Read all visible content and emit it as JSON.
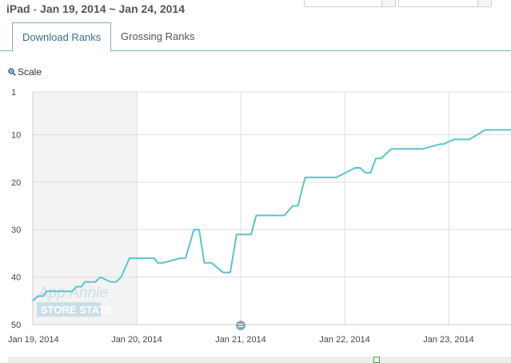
{
  "header": {
    "device": "iPad",
    "separator": " - ",
    "date_range": "Jan 19, 2014 ~ Jan 24, 2014"
  },
  "tabs": [
    {
      "label": "Download Ranks",
      "active": true
    },
    {
      "label": "Grossing Ranks",
      "active": false
    }
  ],
  "scale": {
    "label": "Scale",
    "icon": "zoom-icon"
  },
  "watermark": {
    "line1": "App Annie",
    "line2": "STORE STATS"
  },
  "colors": {
    "line": "#5bc4cc",
    "shaded_region": "#f3f3f3",
    "grid": "#dddddd",
    "tab_border": "#7fb0c4"
  },
  "chart_data": {
    "type": "line",
    "title": "",
    "xlabel": "",
    "ylabel": "",
    "y_inverted": true,
    "ylim": [
      1,
      50
    ],
    "yticks": [
      1,
      10,
      20,
      30,
      40,
      50
    ],
    "x_ticks": [
      "Jan 19, 2014",
      "Jan 20, 2014",
      "Jan 21, 2014",
      "Jan 22, 2014",
      "Jan 23, 2014"
    ],
    "x_range_days": [
      0,
      4.6
    ],
    "shaded_range_days": [
      0,
      1
    ],
    "series": [
      {
        "name": "",
        "x": [
          0,
          0.05,
          0.08,
          0.1,
          0.13,
          0.25,
          0.3,
          0.38,
          0.42,
          0.47,
          0.5,
          0.6,
          0.65,
          0.75,
          0.8,
          0.85,
          0.93,
          1.0,
          1.08,
          1.17,
          1.2,
          1.25,
          1.42,
          1.47,
          1.55,
          1.6,
          1.65,
          1.72,
          1.83,
          1.9,
          1.96,
          2.1,
          2.15,
          2.25,
          2.35,
          2.42,
          2.5,
          2.55,
          2.62,
          2.7,
          2.8,
          2.92,
          3.1,
          3.15,
          3.2,
          3.25,
          3.3,
          3.35,
          3.45,
          3.6,
          3.75,
          3.92,
          3.95,
          4.05,
          4.1,
          4.2,
          4.35,
          4.45,
          4.6
        ],
        "y": [
          45,
          44,
          44,
          44,
          43,
          43,
          43,
          43,
          42,
          42,
          41,
          41,
          40,
          41,
          41,
          40,
          36,
          36,
          36,
          36,
          37,
          37,
          36,
          36,
          30,
          30,
          37,
          37,
          39,
          39,
          31,
          31,
          27,
          27,
          27,
          27,
          25,
          25,
          19,
          19,
          19,
          19,
          17,
          17,
          18,
          18,
          15,
          15,
          13,
          13,
          13,
          12,
          12,
          11,
          11,
          11,
          9,
          9,
          9
        ]
      }
    ]
  }
}
